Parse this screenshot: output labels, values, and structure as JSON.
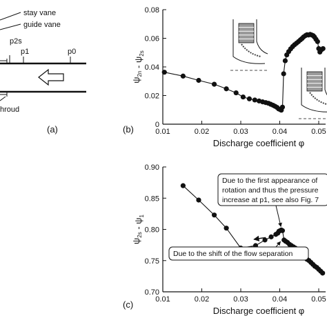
{
  "panel_a": {
    "labels": {
      "stay_vane": "stay vane",
      "guide_vane": "guide vane",
      "p2s": "p2s",
      "p1": "p1",
      "p0": "p0",
      "shroud": "hroud",
      "panel": "(a)"
    }
  },
  "chart_data": [
    {
      "id": "b",
      "type": "line",
      "panel_label": "(b)",
      "xlabel": "Discharge coefficient φ",
      "ylabel": "ψ2n - ψ2s",
      "xlim": [
        0.01,
        0.05
      ],
      "ylim": [
        0,
        0.08
      ],
      "xticks": [
        "0.01",
        "0.02",
        "0.03",
        "0.04",
        "0.05"
      ],
      "yticks": [
        "0",
        "0.02",
        "0.04",
        "0.06",
        "0.08"
      ],
      "grid": false,
      "legend": "none",
      "series": [
        {
          "marker": "filled-circle",
          "x": [
            0.0104,
            0.0152,
            0.0192,
            0.0232,
            0.0263,
            0.0288,
            0.0306,
            0.0322,
            0.0336,
            0.0347,
            0.0356,
            0.0364,
            0.0371,
            0.0377,
            0.0383,
            0.0388,
            0.0393,
            0.0397,
            0.0401,
            0.0404,
            0.0407,
            0.041,
            0.0414,
            0.0418,
            0.0423,
            0.0428,
            0.0433,
            0.0438,
            0.0443,
            0.0448,
            0.0453,
            0.0457,
            0.0461,
            0.0466,
            0.047,
            0.0474,
            0.0478,
            0.0482,
            0.0486,
            0.0489,
            0.0493,
            0.0497,
            0.05,
            0.0503,
            0.0507,
            0.0511
          ],
          "y": [
            0.0363,
            0.0336,
            0.0306,
            0.0279,
            0.0247,
            0.0219,
            0.019,
            0.0177,
            0.0169,
            0.0162,
            0.0156,
            0.0151,
            0.0146,
            0.0139,
            0.0132,
            0.0125,
            0.0117,
            0.0107,
            0.0102,
            0.0098,
            0.0119,
            0.0352,
            0.0443,
            0.0484,
            0.0507,
            0.0526,
            0.0542,
            0.0555,
            0.0566,
            0.0577,
            0.0589,
            0.0598,
            0.0609,
            0.0619,
            0.0625,
            0.0623,
            0.0627,
            0.0623,
            0.0618,
            0.0609,
            0.0593,
            0.0577,
            0.0528,
            0.0504,
            0.052,
            0.0528
          ]
        }
      ]
    },
    {
      "id": "c",
      "type": "line",
      "panel_label": "(c)",
      "xlabel": "Discharge coefficient φ",
      "ylabel": "ψ2s - ψ1",
      "xlim": [
        0.01,
        0.05
      ],
      "ylim": [
        0.7,
        0.9
      ],
      "xticks": [
        "0.01",
        "0.02",
        "0.03",
        "0.04",
        "0.05"
      ],
      "yticks": [
        "0.70",
        "0.75",
        "0.80",
        "0.85",
        "0.90"
      ],
      "grid": false,
      "legend": "none",
      "annotations": [
        {
          "id": "first",
          "lines": [
            "Due to the first appearance of",
            "rotation and thus the pressure",
            "increase at p1, see also Fig. 7"
          ]
        },
        {
          "id": "shift",
          "lines": [
            "Due to the shift of the flow separation"
          ]
        }
      ],
      "series": [
        {
          "marker": "filled-circle",
          "x": [
            0.0152,
            0.0192,
            0.0232,
            0.0263,
            0.03,
            0.0338,
            0.0362,
            0.0378,
            0.039,
            0.0395,
            0.0398,
            0.0401,
            0.0404,
            0.0407,
            0.0411,
            0.0415,
            0.042,
            0.0425,
            0.043,
            0.0435,
            0.044,
            0.0445,
            0.045,
            0.0455,
            0.046,
            0.0465,
            0.047,
            0.0475,
            0.048,
            0.0485,
            0.049,
            0.0495,
            0.05,
            0.0505,
            0.051
          ],
          "y": [
            0.87,
            0.847,
            0.823,
            0.802,
            0.77,
            0.774,
            0.783,
            0.788,
            0.792,
            0.794,
            0.797,
            0.798,
            0.799,
            0.798,
            0.783,
            0.781,
            0.779,
            0.776,
            0.774,
            0.772,
            0.77,
            0.767,
            0.763,
            0.758,
            0.757,
            0.754,
            0.752,
            0.75,
            0.747,
            0.744,
            0.741,
            0.739,
            0.736,
            0.733,
            0.73
          ]
        }
      ]
    }
  ]
}
